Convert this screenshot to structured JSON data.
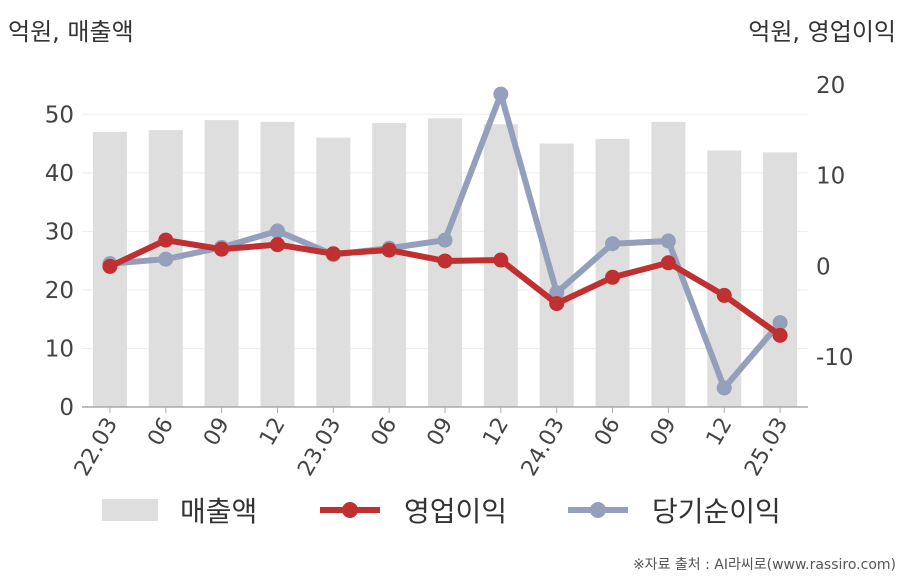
{
  "units": {
    "left": "억원, 매출액",
    "right": "억원, 영업이익"
  },
  "source": "※자료 출처 : AI라씨로(www.rassiro.com)",
  "colors": {
    "bar": "#dedede",
    "operating_profit": "#c03030",
    "net_income": "#939fbb",
    "axis": "#aaaaaa",
    "grid": "#eeeeee"
  },
  "chart_data": {
    "type": "bar",
    "categories": [
      "22.03",
      "06",
      "09",
      "12",
      "23.03",
      "06",
      "09",
      "12",
      "24.03",
      "06",
      "09",
      "12",
      "25.03"
    ],
    "left_axis": {
      "ylim": [
        0,
        55
      ],
      "ticks": [
        0,
        10,
        20,
        30,
        40,
        50
      ]
    },
    "right_axis": {
      "ylim": [
        -15.5,
        20
      ],
      "ticks": [
        -10,
        0,
        10,
        20
      ]
    },
    "series": [
      {
        "name": "매출액",
        "type": "bar",
        "axis": "left",
        "values": [
          47.0,
          47.3,
          49.0,
          48.7,
          46.0,
          48.5,
          49.3,
          48.3,
          45.0,
          45.8,
          48.7,
          43.8,
          43.5
        ]
      },
      {
        "name": "영업이익",
        "type": "line",
        "axis": "right",
        "values": [
          0.0,
          2.9,
          1.9,
          2.4,
          1.4,
          1.8,
          0.6,
          0.7,
          -4.1,
          -1.2,
          0.4,
          -3.2,
          -7.6
        ]
      },
      {
        "name": "당기순이익",
        "type": "line",
        "axis": "right",
        "values": [
          0.3,
          0.8,
          2.1,
          3.9,
          1.3,
          2.0,
          2.9,
          19.0,
          -2.9,
          2.5,
          2.8,
          -13.4,
          -6.2
        ]
      }
    ],
    "grid": true,
    "legend_position": "bottom"
  }
}
